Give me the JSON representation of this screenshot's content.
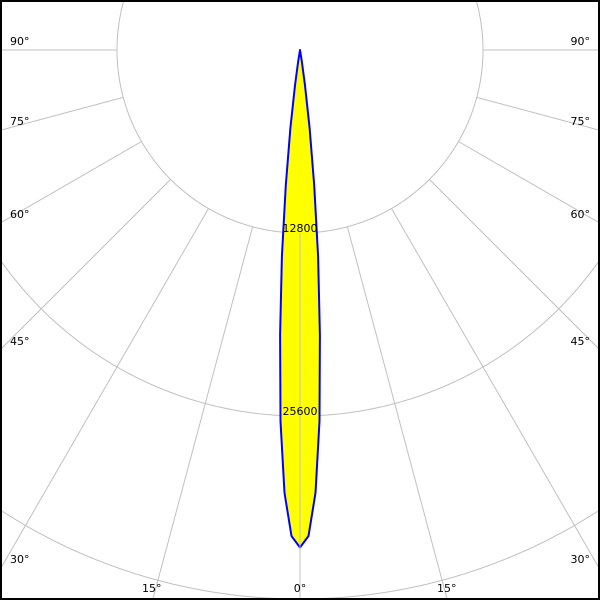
{
  "chart_data": {
    "type": "polar",
    "title": "",
    "radial_ticks": [
      12800,
      25600
    ],
    "radial_tick_labels": [
      "12800",
      "25600"
    ],
    "angle_ticks": [
      0,
      15,
      30,
      45,
      60,
      75,
      90
    ],
    "angle_labels_left": [
      "90°",
      "75°",
      "60°",
      "45°",
      "30°",
      "15°"
    ],
    "angle_labels_right": [
      "90°",
      "75°",
      "60°",
      "45°",
      "30°",
      "15°"
    ],
    "angle_label_bottom": "0°",
    "grid": true,
    "series": [
      {
        "angles": [
          0,
          1,
          2,
          3,
          4,
          5,
          6,
          7,
          8,
          9,
          10
        ],
        "values": [
          34800,
          34000,
          31000,
          26000,
          20000,
          14500,
          9500,
          5500,
          2500,
          800,
          0
        ],
        "fill": "#ffff00",
        "stroke": "#0000ff"
      }
    ],
    "colors": {
      "grid": "#c0c0c0",
      "border": "#000000"
    }
  }
}
